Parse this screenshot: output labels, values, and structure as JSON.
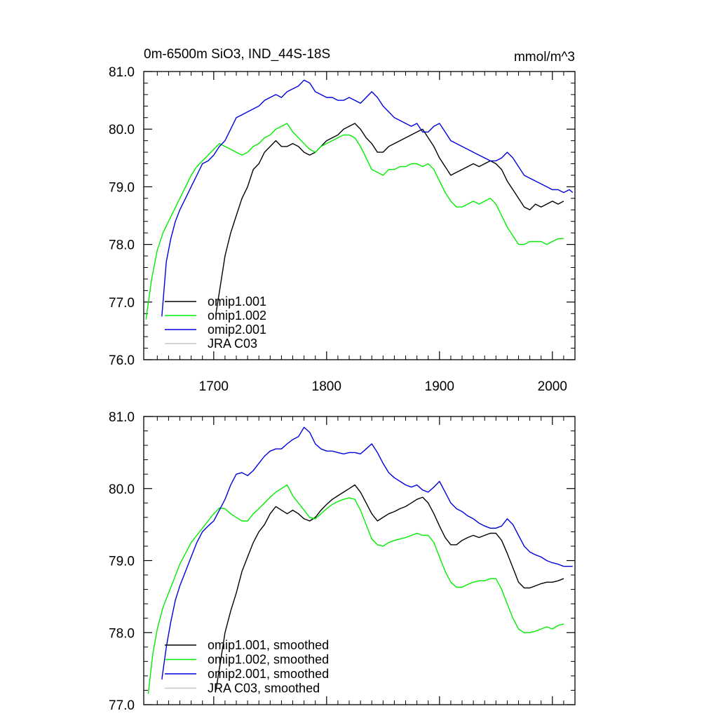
{
  "chart_data": [
    {
      "type": "line",
      "title": "0m-6500m SiO3, IND_44S-18S",
      "units": "mmol/m^3",
      "xlim": [
        1638,
        2020
      ],
      "ylim": [
        76.0,
        81.0
      ],
      "x_ticks": [
        1700,
        1800,
        1900,
        2000
      ],
      "y_ticks": [
        "76.0",
        "77.0",
        "78.0",
        "79.0",
        "80.0",
        "81.0"
      ],
      "grid": false,
      "legend": "bottom-left",
      "series": [
        {
          "name": "omip1.001",
          "color": "#000000",
          "x": [
            1702,
            1706,
            1710,
            1715,
            1720,
            1725,
            1730,
            1735,
            1740,
            1745,
            1750,
            1755,
            1760,
            1765,
            1770,
            1775,
            1780,
            1785,
            1790,
            1795,
            1800,
            1805,
            1810,
            1815,
            1820,
            1825,
            1830,
            1835,
            1840,
            1845,
            1850,
            1855,
            1860,
            1865,
            1870,
            1875,
            1880,
            1885,
            1890,
            1895,
            1900,
            1905,
            1910,
            1915,
            1920,
            1925,
            1930,
            1935,
            1940,
            1945,
            1950,
            1955,
            1960,
            1965,
            1970,
            1975,
            1980,
            1985,
            1990,
            1995,
            2000,
            2005,
            2010
          ],
          "y": [
            76.8,
            77.3,
            77.8,
            78.2,
            78.5,
            78.8,
            79.0,
            79.3,
            79.4,
            79.6,
            79.7,
            79.8,
            79.7,
            79.7,
            79.75,
            79.7,
            79.6,
            79.55,
            79.6,
            79.7,
            79.8,
            79.85,
            79.9,
            80.0,
            80.05,
            80.1,
            80.0,
            79.85,
            79.75,
            79.6,
            79.6,
            79.7,
            79.75,
            79.8,
            79.85,
            79.9,
            79.95,
            80.0,
            79.85,
            79.7,
            79.5,
            79.35,
            79.2,
            79.25,
            79.3,
            79.35,
            79.4,
            79.35,
            79.4,
            79.45,
            79.4,
            79.3,
            79.1,
            78.95,
            78.8,
            78.65,
            78.6,
            78.7,
            78.65,
            78.7,
            78.75,
            78.7,
            78.75
          ]
        },
        {
          "name": "omip1.002",
          "color": "#00ee00",
          "x": [
            1640,
            1645,
            1650,
            1655,
            1660,
            1665,
            1670,
            1675,
            1680,
            1685,
            1690,
            1695,
            1700,
            1705,
            1710,
            1715,
            1720,
            1725,
            1730,
            1735,
            1740,
            1745,
            1750,
            1755,
            1760,
            1765,
            1770,
            1775,
            1780,
            1785,
            1790,
            1795,
            1800,
            1805,
            1810,
            1815,
            1820,
            1825,
            1830,
            1835,
            1840,
            1845,
            1850,
            1855,
            1860,
            1865,
            1870,
            1875,
            1880,
            1885,
            1890,
            1895,
            1900,
            1905,
            1910,
            1915,
            1920,
            1925,
            1930,
            1935,
            1940,
            1945,
            1950,
            1955,
            1960,
            1965,
            1970,
            1975,
            1980,
            1985,
            1990,
            1995,
            2000,
            2005,
            2010
          ],
          "y": [
            76.7,
            77.4,
            77.9,
            78.2,
            78.4,
            78.6,
            78.8,
            79.0,
            79.2,
            79.35,
            79.45,
            79.55,
            79.65,
            79.75,
            79.7,
            79.65,
            79.6,
            79.55,
            79.6,
            79.7,
            79.75,
            79.85,
            79.9,
            80.0,
            80.05,
            80.1,
            79.95,
            79.85,
            79.75,
            79.65,
            79.6,
            79.7,
            79.75,
            79.8,
            79.85,
            79.9,
            79.9,
            79.85,
            79.7,
            79.5,
            79.3,
            79.25,
            79.2,
            79.3,
            79.3,
            79.35,
            79.35,
            79.4,
            79.4,
            79.35,
            79.4,
            79.3,
            79.1,
            78.9,
            78.75,
            78.65,
            78.65,
            78.7,
            78.75,
            78.7,
            78.75,
            78.8,
            78.7,
            78.5,
            78.3,
            78.15,
            78.0,
            78.0,
            78.05,
            78.05,
            78.05,
            78.0,
            78.05,
            78.1,
            78.1
          ]
        },
        {
          "name": "omip2.001",
          "color": "#0000dd",
          "x": [
            1654,
            1658,
            1662,
            1666,
            1670,
            1675,
            1680,
            1685,
            1690,
            1695,
            1700,
            1705,
            1710,
            1715,
            1720,
            1725,
            1730,
            1735,
            1740,
            1745,
            1750,
            1755,
            1760,
            1765,
            1770,
            1775,
            1780,
            1785,
            1790,
            1795,
            1800,
            1805,
            1810,
            1815,
            1820,
            1825,
            1830,
            1835,
            1840,
            1845,
            1850,
            1855,
            1860,
            1865,
            1870,
            1875,
            1880,
            1885,
            1890,
            1895,
            1900,
            1905,
            1910,
            1915,
            1920,
            1925,
            1930,
            1935,
            1940,
            1945,
            1950,
            1955,
            1960,
            1965,
            1970,
            1975,
            1980,
            1985,
            1990,
            1995,
            2000,
            2005,
            2010,
            2015,
            2018
          ],
          "y": [
            76.75,
            77.7,
            78.1,
            78.4,
            78.6,
            78.8,
            79.0,
            79.2,
            79.4,
            79.45,
            79.55,
            79.7,
            79.8,
            80.0,
            80.2,
            80.25,
            80.3,
            80.35,
            80.4,
            80.5,
            80.55,
            80.6,
            80.55,
            80.65,
            80.7,
            80.75,
            80.85,
            80.8,
            80.65,
            80.6,
            80.55,
            80.55,
            80.5,
            80.5,
            80.55,
            80.5,
            80.45,
            80.55,
            80.65,
            80.55,
            80.4,
            80.3,
            80.2,
            80.15,
            80.1,
            80.05,
            80.1,
            79.95,
            79.95,
            80.05,
            80.1,
            79.95,
            79.8,
            79.75,
            79.7,
            79.65,
            79.6,
            79.55,
            79.5,
            79.45,
            79.45,
            79.5,
            79.6,
            79.5,
            79.35,
            79.2,
            79.15,
            79.1,
            79.05,
            79.0,
            78.95,
            78.95,
            78.9,
            78.95,
            78.9
          ]
        },
        {
          "name": "JRA C03",
          "color": "#c8c8c8",
          "x": [],
          "y": []
        }
      ]
    },
    {
      "type": "line",
      "title": "",
      "xlim": [
        1638,
        2020
      ],
      "ylim": [
        77.0,
        81.0
      ],
      "y_ticks": [
        "77.0",
        "78.0",
        "79.0",
        "80.0",
        "81.0"
      ],
      "grid": false,
      "legend": "bottom-left",
      "series": [
        {
          "name": "omip1.001, smoothed",
          "color": "#000000",
          "x": [
            1702,
            1706,
            1710,
            1715,
            1720,
            1725,
            1730,
            1735,
            1740,
            1745,
            1750,
            1755,
            1760,
            1765,
            1770,
            1775,
            1780,
            1785,
            1790,
            1795,
            1800,
            1805,
            1810,
            1815,
            1820,
            1825,
            1830,
            1835,
            1840,
            1845,
            1850,
            1855,
            1860,
            1865,
            1870,
            1875,
            1880,
            1885,
            1890,
            1895,
            1900,
            1905,
            1910,
            1915,
            1920,
            1925,
            1930,
            1935,
            1940,
            1945,
            1950,
            1955,
            1960,
            1965,
            1970,
            1975,
            1980,
            1985,
            1990,
            1995,
            2000,
            2005,
            2010
          ],
          "y": [
            77.2,
            77.6,
            78.0,
            78.3,
            78.55,
            78.85,
            79.05,
            79.25,
            79.4,
            79.5,
            79.65,
            79.75,
            79.7,
            79.65,
            79.7,
            79.65,
            79.58,
            79.55,
            79.6,
            79.7,
            79.78,
            79.85,
            79.9,
            79.95,
            80.0,
            80.05,
            79.95,
            79.8,
            79.65,
            79.55,
            79.6,
            79.65,
            79.68,
            79.72,
            79.75,
            79.8,
            79.85,
            79.88,
            79.8,
            79.65,
            79.48,
            79.32,
            79.22,
            79.22,
            79.28,
            79.32,
            79.35,
            79.32,
            79.35,
            79.38,
            79.38,
            79.28,
            79.1,
            78.9,
            78.7,
            78.62,
            78.62,
            78.65,
            78.68,
            78.7,
            78.7,
            78.72,
            78.75
          ]
        },
        {
          "name": "omip1.002, smoothed",
          "color": "#00ee00",
          "x": [
            1642,
            1646,
            1650,
            1655,
            1660,
            1665,
            1670,
            1675,
            1680,
            1685,
            1690,
            1695,
            1700,
            1705,
            1710,
            1715,
            1720,
            1725,
            1730,
            1735,
            1740,
            1745,
            1750,
            1755,
            1760,
            1765,
            1770,
            1775,
            1780,
            1785,
            1790,
            1795,
            1800,
            1805,
            1810,
            1815,
            1820,
            1825,
            1830,
            1835,
            1840,
            1845,
            1850,
            1855,
            1860,
            1865,
            1870,
            1875,
            1880,
            1885,
            1890,
            1895,
            1900,
            1905,
            1910,
            1915,
            1920,
            1925,
            1930,
            1935,
            1940,
            1945,
            1950,
            1955,
            1960,
            1965,
            1970,
            1975,
            1980,
            1985,
            1990,
            1995,
            2000,
            2005,
            2010
          ],
          "y": [
            77.15,
            77.7,
            78.05,
            78.35,
            78.55,
            78.75,
            78.95,
            79.1,
            79.25,
            79.35,
            79.45,
            79.55,
            79.65,
            79.73,
            79.72,
            79.65,
            79.6,
            79.55,
            79.55,
            79.65,
            79.72,
            79.8,
            79.88,
            79.95,
            80.0,
            80.05,
            79.9,
            79.8,
            79.7,
            79.6,
            79.58,
            79.65,
            79.72,
            79.78,
            79.82,
            79.85,
            79.87,
            79.85,
            79.7,
            79.5,
            79.3,
            79.22,
            79.2,
            79.25,
            79.28,
            79.3,
            79.32,
            79.35,
            79.38,
            79.35,
            79.35,
            79.25,
            79.05,
            78.85,
            78.7,
            78.63,
            78.63,
            78.67,
            78.7,
            78.72,
            78.72,
            78.75,
            78.75,
            78.6,
            78.4,
            78.2,
            78.05,
            78.0,
            78.0,
            78.02,
            78.05,
            78.08,
            78.05,
            78.1,
            78.12
          ]
        },
        {
          "name": "omip2.001, smoothed",
          "color": "#0000dd",
          "x": [
            1654,
            1658,
            1662,
            1666,
            1670,
            1675,
            1680,
            1685,
            1690,
            1695,
            1700,
            1705,
            1710,
            1715,
            1720,
            1725,
            1730,
            1735,
            1740,
            1745,
            1750,
            1755,
            1760,
            1765,
            1770,
            1775,
            1780,
            1785,
            1790,
            1795,
            1800,
            1805,
            1810,
            1815,
            1820,
            1825,
            1830,
            1835,
            1840,
            1845,
            1850,
            1855,
            1860,
            1865,
            1870,
            1875,
            1880,
            1885,
            1890,
            1895,
            1900,
            1905,
            1910,
            1915,
            1920,
            1925,
            1930,
            1935,
            1940,
            1945,
            1950,
            1955,
            1960,
            1965,
            1970,
            1975,
            1980,
            1985,
            1990,
            1995,
            2000,
            2005,
            2010,
            2015,
            2018
          ],
          "y": [
            77.35,
            77.8,
            78.15,
            78.45,
            78.65,
            78.85,
            79.05,
            79.25,
            79.4,
            79.48,
            79.55,
            79.7,
            79.85,
            80.05,
            80.2,
            80.22,
            80.18,
            80.25,
            80.35,
            80.45,
            80.52,
            80.55,
            80.55,
            80.62,
            80.68,
            80.72,
            80.85,
            80.78,
            80.62,
            80.55,
            80.52,
            80.52,
            80.5,
            80.48,
            80.5,
            80.5,
            80.48,
            80.55,
            80.62,
            80.5,
            80.35,
            80.22,
            80.15,
            80.1,
            80.05,
            80.02,
            80.05,
            79.98,
            79.95,
            80.02,
            80.1,
            79.95,
            79.8,
            79.72,
            79.68,
            79.62,
            79.58,
            79.52,
            79.48,
            79.45,
            79.45,
            79.48,
            79.58,
            79.5,
            79.35,
            79.2,
            79.12,
            79.08,
            79.05,
            79.0,
            78.97,
            78.95,
            78.92,
            78.92,
            78.92
          ]
        },
        {
          "name": "JRA C03, smoothed",
          "color": "#c8c8c8",
          "x": [],
          "y": []
        }
      ]
    }
  ]
}
